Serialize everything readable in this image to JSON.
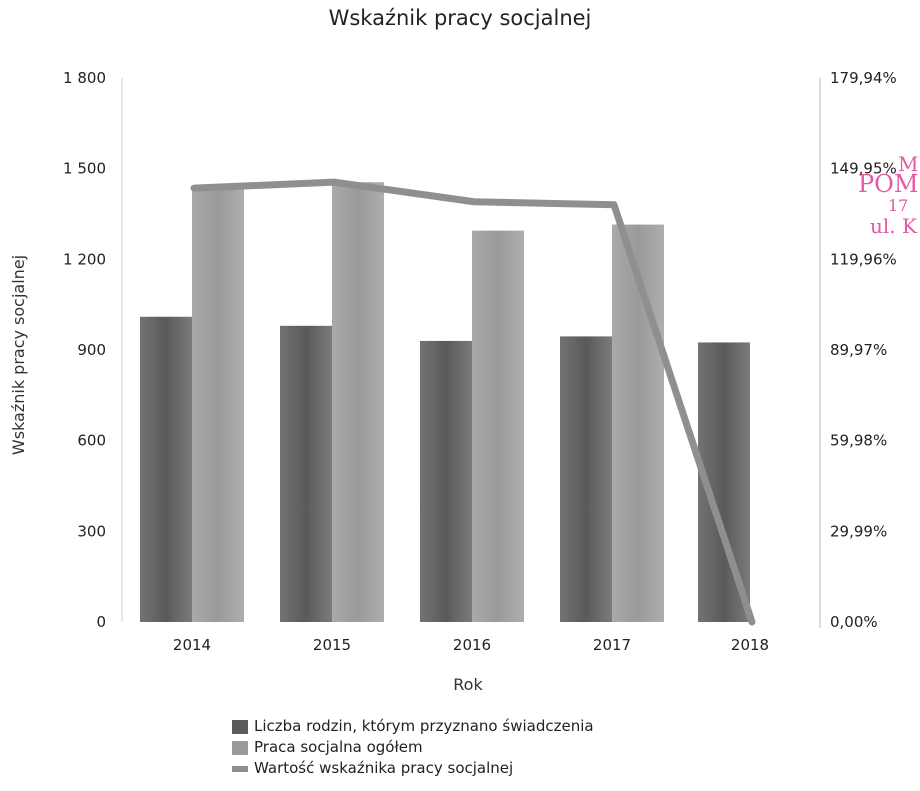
{
  "chart_data": {
    "type": "bar",
    "title": "Wskaźnik pracy socjalnej",
    "xlabel": "Rok",
    "ylabel": "Wskaźnik pracy socjalnej",
    "categories": [
      "2014",
      "2015",
      "2016",
      "2017",
      "2018"
    ],
    "ylim": [
      0,
      1800
    ],
    "yticks": [
      "0",
      "300",
      "600",
      "900",
      "1 200",
      "1 500",
      "1 800"
    ],
    "y2lim": [
      0,
      179.94
    ],
    "y2ticks": [
      "0,00%",
      "29,99%",
      "59,98%",
      "89,97%",
      "119,96%",
      "149,95%",
      "179,94%"
    ],
    "grid": false,
    "legend_position": "bottom",
    "series": [
      {
        "name": "Liczba rodzin, którym przyznano świadczenia",
        "kind": "bar",
        "axis": "left",
        "color": "#5a5a5a",
        "values": [
          1010,
          980,
          930,
          945,
          925
        ]
      },
      {
        "name": "Praca socjalna ogółem",
        "kind": "bar",
        "axis": "left",
        "color": "#9a9a9a",
        "values": [
          1435,
          1455,
          1295,
          1315,
          0
        ]
      },
      {
        "name": "Wartość wskaźnika pracy socjalnej",
        "kind": "line",
        "axis": "right",
        "color": "#8f8f8f",
        "values": [
          143.5,
          145.5,
          139.0,
          138.0,
          0.0
        ]
      }
    ]
  },
  "stamp": {
    "lines": [
      "M",
      "POM",
      "17",
      "ul. K"
    ]
  }
}
